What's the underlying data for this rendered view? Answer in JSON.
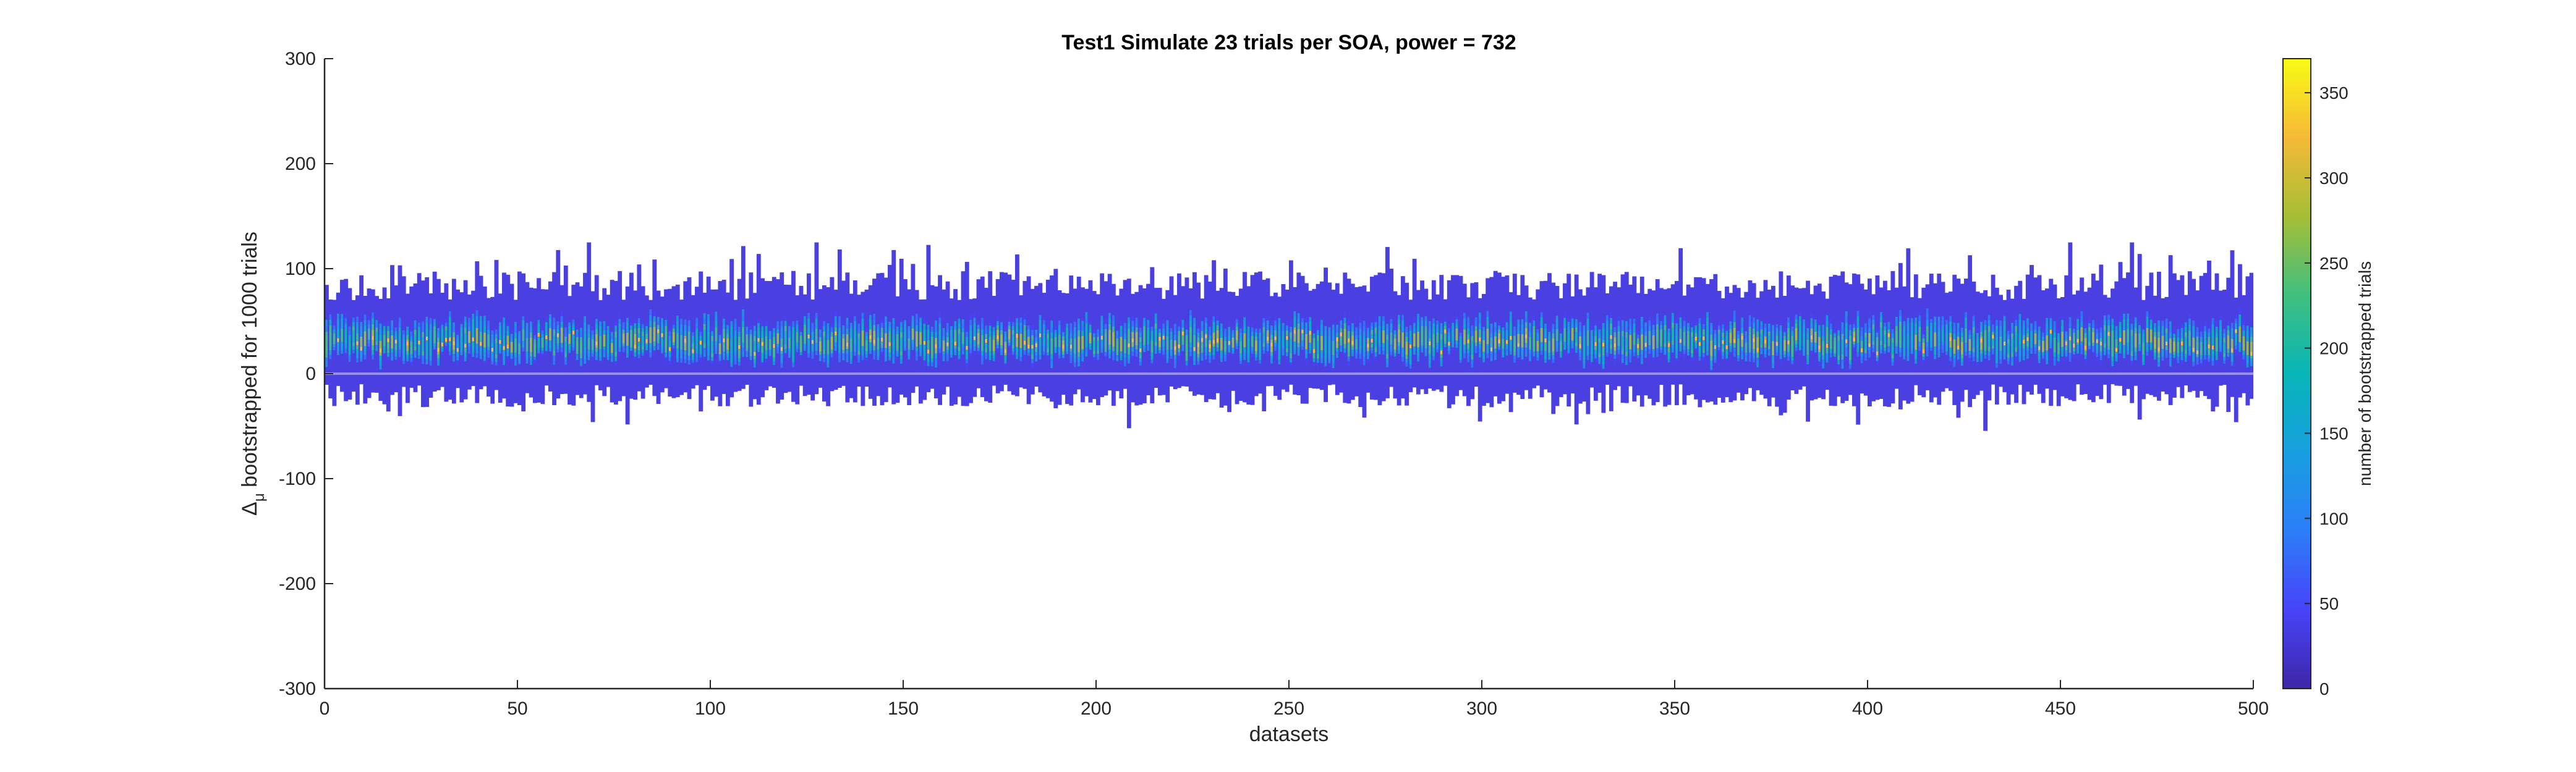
{
  "chart_data": {
    "type": "heatmap",
    "title": "Test1 Simulate 23 trials per SOA, power = 732",
    "xlabel": "datasets",
    "ylabel_main": "bootstrapped for 1000 trials",
    "ylabel_symbol": "Δ",
    "ylabel_subscript": "μ",
    "xlim": [
      0,
      500
    ],
    "ylim": [
      -300,
      300
    ],
    "xticks": [
      0,
      50,
      100,
      150,
      200,
      250,
      300,
      350,
      400,
      450,
      500
    ],
    "yticks": [
      -300,
      -200,
      -100,
      0,
      100,
      200,
      300
    ],
    "n_datasets": 500,
    "typical_range": {
      "lower": -20,
      "upper": 80,
      "center": 30
    },
    "extreme_range": {
      "min": -58,
      "max": 125
    },
    "colorbar": {
      "label": "number of bootstrapped trials",
      "clim": [
        0,
        370
      ],
      "ticks": [
        0,
        50,
        100,
        150,
        200,
        250,
        300,
        350
      ],
      "colormap": "parula"
    }
  }
}
